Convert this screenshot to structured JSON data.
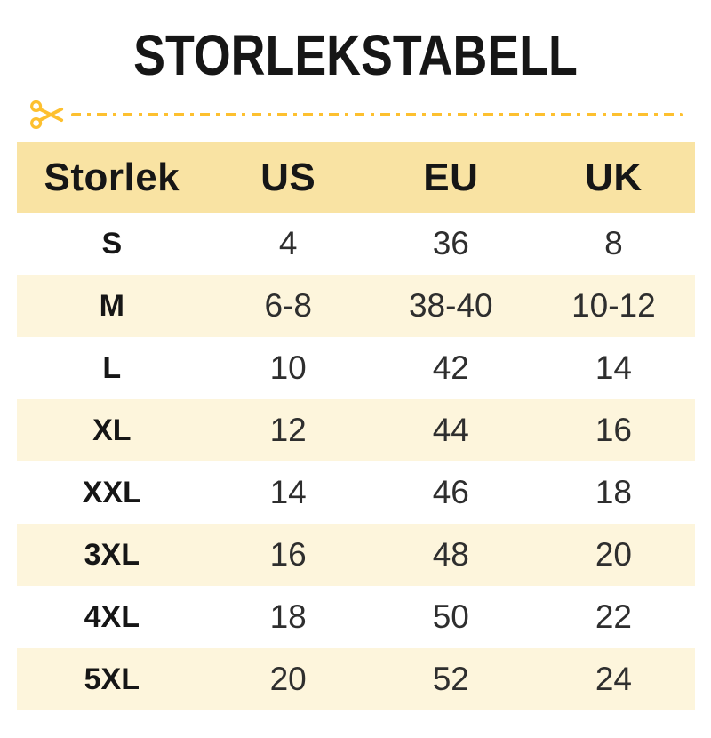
{
  "title": "STORLEKSTABELL",
  "colors": {
    "accent": "#FDC02F",
    "header_bg": "#F9E3A3",
    "row_alt_bg": "#FDF5DC",
    "text": "#161616"
  },
  "cut_line": {
    "icon": "scissors-icon"
  },
  "table": {
    "headers": [
      "Storlek",
      "US",
      "EU",
      "UK"
    ],
    "rows": [
      {
        "size": "S",
        "us": "4",
        "eu": "36",
        "uk": "8"
      },
      {
        "size": "M",
        "us": "6-8",
        "eu": "38-40",
        "uk": "10-12"
      },
      {
        "size": "L",
        "us": "10",
        "eu": "42",
        "uk": "14"
      },
      {
        "size": "XL",
        "us": "12",
        "eu": "44",
        "uk": "16"
      },
      {
        "size": "XXL",
        "us": "14",
        "eu": "46",
        "uk": "18"
      },
      {
        "size": "3XL",
        "us": "16",
        "eu": "48",
        "uk": "20"
      },
      {
        "size": "4XL",
        "us": "18",
        "eu": "50",
        "uk": "22"
      },
      {
        "size": "5XL",
        "us": "20",
        "eu": "52",
        "uk": "24"
      }
    ]
  }
}
